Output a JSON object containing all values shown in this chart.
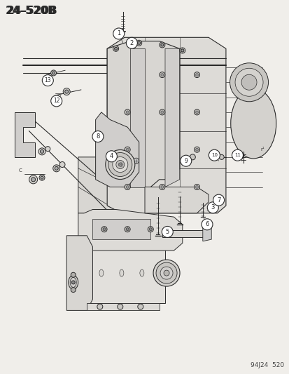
{
  "title": "24–520B",
  "footer": "94J24  520",
  "bg_color": "#f0eeea",
  "line_color": "#2a2a2a",
  "title_fontsize": 11,
  "footer_fontsize": 6.5,
  "fig_width": 4.14,
  "fig_height": 5.33,
  "dpi": 100
}
